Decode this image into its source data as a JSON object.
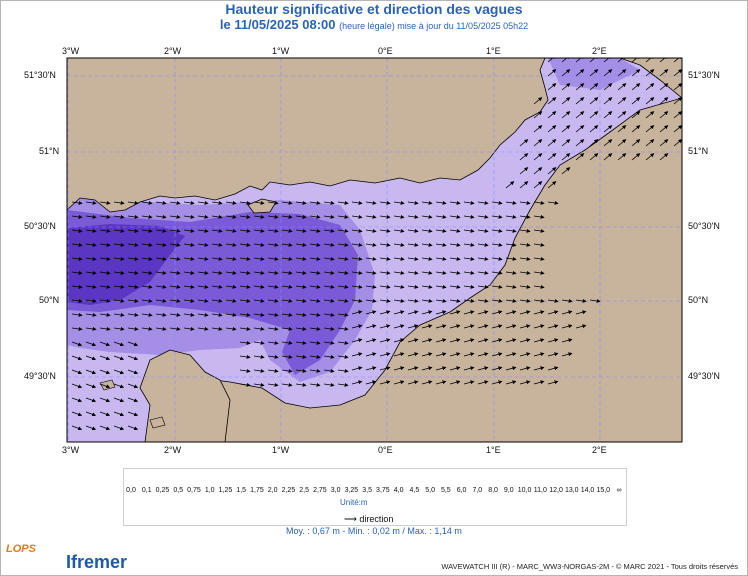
{
  "header": {
    "title": "Hauteur significative et direction des vagues",
    "date": "le 11/05/2025 08:00",
    "note": "(heure légale) mise à jour du 11/05/2025 05h22"
  },
  "axes": {
    "lon_labels": [
      "3°W",
      "2°W",
      "1°W",
      "0°E",
      "1°E",
      "2°E"
    ],
    "lat_labels": [
      "51°30'N",
      "51°N",
      "50°30'N",
      "50°N",
      "49°30'N"
    ]
  },
  "legend": {
    "ticks": [
      "0,0",
      "0,1",
      "0,25",
      "0,5",
      "0,75",
      "1,0",
      "1,25",
      "1,5",
      "1,75",
      "2,0",
      "2,25",
      "2,5",
      "2,75",
      "3,0",
      "3,25",
      "3,5",
      "3,75",
      "4,0",
      "4,5",
      "5,0",
      "5,5",
      "6,0",
      "7,0",
      "8,0",
      "9,0",
      "10,0",
      "11,0",
      "12,0",
      "13,0",
      "14,0",
      "15,0",
      "∞"
    ],
    "colors": [
      "#efe2d6",
      "#ddc8b4",
      "#c8b39c",
      "#c8b8ef",
      "#a58ee6",
      "#7a5ad6",
      "#5a36c2",
      "#7ae9f0",
      "#3ad0ee",
      "#22a6e6",
      "#1a62d8",
      "#1018b8",
      "#0a0a7a",
      "#d8f5a0",
      "#b4f070",
      "#7ce66a",
      "#3ad848",
      "#16c850",
      "#0ec880",
      "#12b860",
      "#f8f870",
      "#f8dc20",
      "#f8b020",
      "#f88a30",
      "#f4b0a0",
      "#f07070",
      "#d84040",
      "#b05010",
      "#8a2808",
      "#d01010",
      "#a00808",
      "#e010e0",
      "#b010c0",
      "#801090"
    ],
    "unit": "Unité:m",
    "direction": "direction"
  },
  "stats": {
    "text": "Moy. : 0,67 m   -   Min. : 0,02 m / Max. : 1,14 m"
  },
  "footer": "WAVEWATCH III (R) - MARC_WW3-NORGAS-2M - © MARC 2021 - Tous droits réservés",
  "logos": {
    "lops": "LOPS",
    "ifremer": "Ifremer"
  },
  "colors": {
    "land": "#c8b39c",
    "sea_light": "#c8b8ef",
    "sea_mid": "#a58ee6",
    "sea_dark": "#7a5ad6",
    "sea_darkest": "#5a36c2",
    "title": "#2a63b5"
  }
}
